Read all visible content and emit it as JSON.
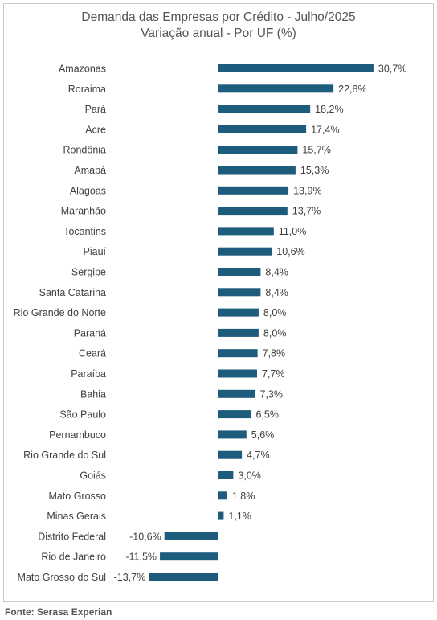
{
  "chart_data": {
    "type": "bar",
    "orientation": "horizontal",
    "title": "Demanda das Empresas por Crédito - Julho/2025",
    "subtitle": "Variação anual - Por UF (%)",
    "categories": [
      "Amazonas",
      "Roraima",
      "Pará",
      "Acre",
      "Rondônia",
      "Amapá",
      "Alagoas",
      "Maranhão",
      "Tocantins",
      "Piauí",
      "Sergipe",
      "Santa Catarina",
      "Rio Grande do Norte",
      "Paraná",
      "Ceará",
      "Paraíba",
      "Bahia",
      "São Paulo",
      "Pernambuco",
      "Rio Grande do Sul",
      "Goiás",
      "Mato Grosso",
      "Minas Gerais",
      "Distrito Federal",
      "Rio de Janeiro",
      "Mato Grosso do Sul"
    ],
    "values": [
      30.7,
      22.8,
      18.2,
      17.4,
      15.7,
      15.3,
      13.9,
      13.7,
      11.0,
      10.6,
      8.4,
      8.4,
      8.0,
      8.0,
      7.8,
      7.7,
      7.3,
      6.5,
      5.6,
      4.7,
      3.0,
      1.8,
      1.1,
      -10.6,
      -11.5,
      -13.7
    ],
    "data_labels": [
      "30,7%",
      "22,8%",
      "18,2%",
      "17,4%",
      "15,7%",
      "15,3%",
      "13,9%",
      "13,7%",
      "11,0%",
      "10,6%",
      "8,4%",
      "8,4%",
      "8,0%",
      "8,0%",
      "7,8%",
      "7,7%",
      "7,3%",
      "6,5%",
      "5,6%",
      "4,7%",
      "3,0%",
      "1,8%",
      "1,1%",
      "-10,6%",
      "-11,5%",
      "-13,7%"
    ],
    "bar_color": "#1d5c7c",
    "axis_color": "#c8c8c8",
    "grid": false,
    "legend": "none"
  },
  "source": "Fonte: Serasa Experian"
}
